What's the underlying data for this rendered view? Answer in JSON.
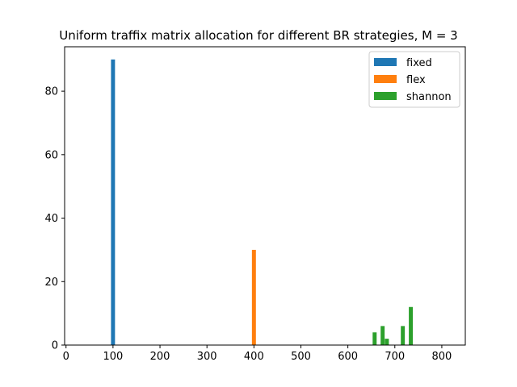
{
  "chart_data": {
    "type": "bar",
    "title": "Uniform traffix matrix allocation for different BR strategies, M = 3",
    "xlabel": "",
    "ylabel": "",
    "xlim": [
      -3,
      850
    ],
    "ylim": [
      0,
      94
    ],
    "xticks": [
      0,
      100,
      200,
      300,
      400,
      500,
      600,
      700,
      800
    ],
    "yticks": [
      0,
      20,
      40,
      60,
      80
    ],
    "grid": false,
    "legend_position": "top-right",
    "bar_width": 8.5,
    "series": [
      {
        "name": "fixed",
        "color": "#1f77b4",
        "bars": [
          {
            "x": 100,
            "value": 90
          }
        ]
      },
      {
        "name": "flex",
        "color": "#ff7f0e",
        "bars": [
          {
            "x": 400,
            "value": 30
          }
        ]
      },
      {
        "name": "shannon",
        "color": "#2ca02c",
        "bars": [
          {
            "x": 657,
            "value": 4
          },
          {
            "x": 674,
            "value": 6
          },
          {
            "x": 683,
            "value": 2
          },
          {
            "x": 717,
            "value": 6
          },
          {
            "x": 734,
            "value": 12
          }
        ]
      }
    ]
  }
}
